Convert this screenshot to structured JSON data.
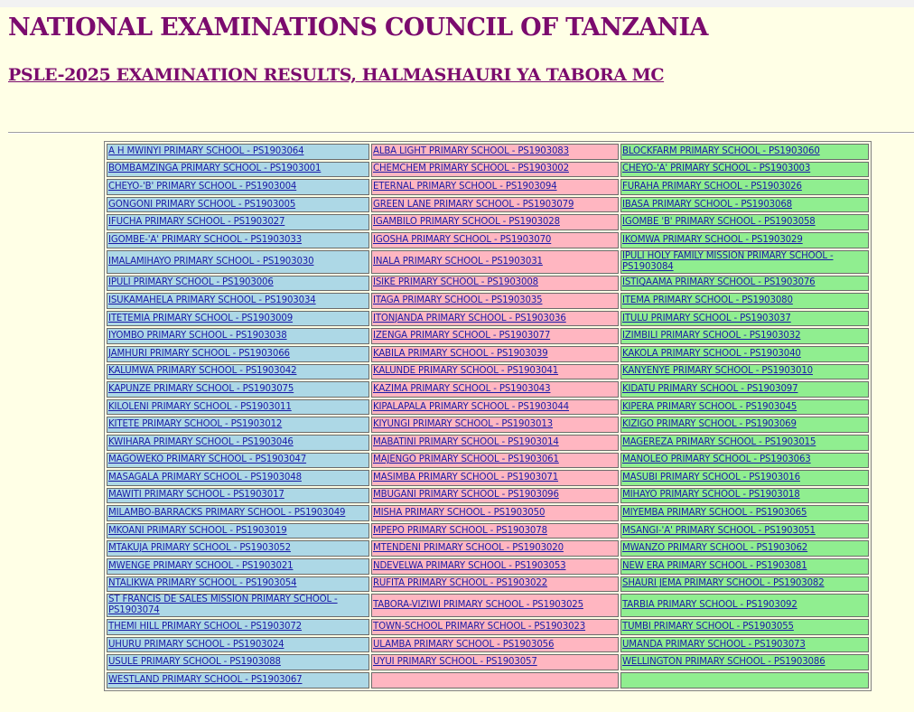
{
  "header": {
    "title": "NATIONAL EXAMINATIONS COUNCIL OF TANZANIA",
    "subtitle": "PSLE-2025 EXAMINATION RESULTS, HALMASHAURI YA TABORA MC"
  },
  "colors": {
    "page_background": "#ffffe6",
    "heading": "#7b0b6e",
    "column1": "#add8e6",
    "column2": "#ffb6c1",
    "column3": "#90ee90",
    "link": "#1a1aa6"
  },
  "schools": [
    [
      "A H MWINYI PRIMARY SCHOOL - PS1903064",
      "ALBA LIGHT PRIMARY SCHOOL - PS1903083",
      "BLOCKFARM PRIMARY SCHOOL - PS1903060"
    ],
    [
      "BOMBAMZINGA PRIMARY SCHOOL - PS1903001",
      "CHEMCHEM PRIMARY SCHOOL - PS1903002",
      "CHEYO-'A' PRIMARY SCHOOL - PS1903003"
    ],
    [
      "CHEYO-'B' PRIMARY SCHOOL - PS1903004",
      "ETERNAL PRIMARY SCHOOL - PS1903094",
      "FURAHA PRIMARY SCHOOL - PS1903026"
    ],
    [
      "GONGONI PRIMARY SCHOOL - PS1903005",
      "GREEN LANE PRIMARY SCHOOL - PS1903079",
      "IBASA PRIMARY SCHOOL - PS1903068"
    ],
    [
      "IFUCHA PRIMARY SCHOOL - PS1903027",
      "IGAMBILO PRIMARY SCHOOL - PS1903028",
      "IGOMBE 'B' PRIMARY SCHOOL - PS1903058"
    ],
    [
      "IGOMBE-'A' PRIMARY SCHOOL - PS1903033",
      "IGOSHA PRIMARY SCHOOL - PS1903070",
      "IKOMWA PRIMARY SCHOOL - PS1903029"
    ],
    [
      "IMALAMIHAYO PRIMARY SCHOOL - PS1903030",
      "INALA PRIMARY SCHOOL - PS1903031",
      "IPULI HOLY FAMILY MISSION PRIMARY SCHOOL - PS1903084"
    ],
    [
      "IPULI PRIMARY SCHOOL - PS1903006",
      "ISIKE PRIMARY SCHOOL - PS1903008",
      "ISTIQAAMA PRIMARY SCHOOL - PS1903076"
    ],
    [
      "ISUKAMAHELA PRIMARY SCHOOL - PS1903034",
      "ITAGA PRIMARY SCHOOL - PS1903035",
      "ITEMA PRIMARY SCHOOL - PS1903080"
    ],
    [
      "ITETEMIA PRIMARY SCHOOL - PS1903009",
      "ITONJANDA PRIMARY SCHOOL - PS1903036",
      "ITULU PRIMARY SCHOOL - PS1903037"
    ],
    [
      "IYOMBO PRIMARY SCHOOL - PS1903038",
      "IZENGA PRIMARY SCHOOL - PS1903077",
      "IZIMBILI PRIMARY SCHOOL - PS1903032"
    ],
    [
      "JAMHURI PRIMARY SCHOOL - PS1903066",
      "KABILA PRIMARY SCHOOL - PS1903039",
      "KAKOLA PRIMARY SCHOOL - PS1903040"
    ],
    [
      "KALUMWA PRIMARY SCHOOL - PS1903042",
      "KALUNDE PRIMARY SCHOOL - PS1903041",
      "KANYENYE PRIMARY SCHOOL - PS1903010"
    ],
    [
      "KAPUNZE PRIMARY SCHOOL - PS1903075",
      "KAZIMA PRIMARY SCHOOL - PS1903043",
      "KIDATU PRIMARY SCHOOL - PS1903097"
    ],
    [
      "KILOLENI PRIMARY SCHOOL - PS1903011",
      "KIPALAPALA PRIMARY SCHOOL - PS1903044",
      "KIPERA PRIMARY SCHOOL - PS1903045"
    ],
    [
      "KITETE PRIMARY SCHOOL - PS1903012",
      "KIYUNGI PRIMARY SCHOOL - PS1903013",
      "KIZIGO PRIMARY SCHOOL - PS1903069"
    ],
    [
      "KWIHARA PRIMARY SCHOOL - PS1903046",
      "MABATINI PRIMARY SCHOOL - PS1903014",
      "MAGEREZA PRIMARY SCHOOL - PS1903015"
    ],
    [
      "MAGOWEKO PRIMARY SCHOOL - PS1903047",
      "MAJENGO PRIMARY SCHOOL - PS1903061",
      "MANOLEO PRIMARY SCHOOL - PS1903063"
    ],
    [
      "MASAGALA PRIMARY SCHOOL - PS1903048",
      "MASIMBA PRIMARY SCHOOL - PS1903071",
      "MASUBI PRIMARY SCHOOL - PS1903016"
    ],
    [
      "MAWITI PRIMARY SCHOOL - PS1903017",
      "MBUGANI PRIMARY SCHOOL - PS1903096",
      "MIHAYO PRIMARY SCHOOL - PS1903018"
    ],
    [
      "MILAMBO-BARRACKS PRIMARY SCHOOL - PS1903049",
      "MISHA PRIMARY SCHOOL - PS1903050",
      "MIYEMBA PRIMARY SCHOOL - PS1903065"
    ],
    [
      "MKOANI PRIMARY SCHOOL - PS1903019",
      "MPEPO PRIMARY SCHOOL - PS1903078",
      "MSANGI-'A' PRIMARY SCHOOL - PS1903051"
    ],
    [
      "MTAKUJA PRIMARY SCHOOL - PS1903052",
      "MTENDENI PRIMARY SCHOOL - PS1903020",
      "MWANZO PRIMARY SCHOOL - PS1903062"
    ],
    [
      "MWENGE PRIMARY SCHOOL - PS1903021",
      "NDEVELWA PRIMARY SCHOOL - PS1903053",
      "NEW ERA PRIMARY SCHOOL - PS1903081"
    ],
    [
      "NTALIKWA PRIMARY SCHOOL - PS1903054",
      "RUFITA PRIMARY SCHOOL - PS1903022",
      "SHAURI JEMA PRIMARY SCHOOL - PS1903082"
    ],
    [
      "ST FRANCIS DE SALES MISSION PRIMARY SCHOOL - PS1903074",
      "TABORA-VIZIWI PRIMARY SCHOOL - PS1903025",
      "TARBIA PRIMARY SCHOOL - PS1903092"
    ],
    [
      "THEMI HILL PRIMARY SCHOOL - PS1903072",
      "TOWN-SCHOOL PRIMARY SCHOOL - PS1903023",
      "TUMBI PRIMARY SCHOOL - PS1903055"
    ],
    [
      "UHURU PRIMARY SCHOOL - PS1903024",
      "ULAMBA PRIMARY SCHOOL - PS1903056",
      "UMANDA PRIMARY SCHOOL - PS1903073"
    ],
    [
      "USULE PRIMARY SCHOOL - PS1903088",
      "UYUI PRIMARY SCHOOL - PS1903057",
      "WELLINGTON PRIMARY SCHOOL - PS1903086"
    ],
    [
      "WESTLAND PRIMARY SCHOOL - PS1903067",
      "",
      ""
    ]
  ]
}
